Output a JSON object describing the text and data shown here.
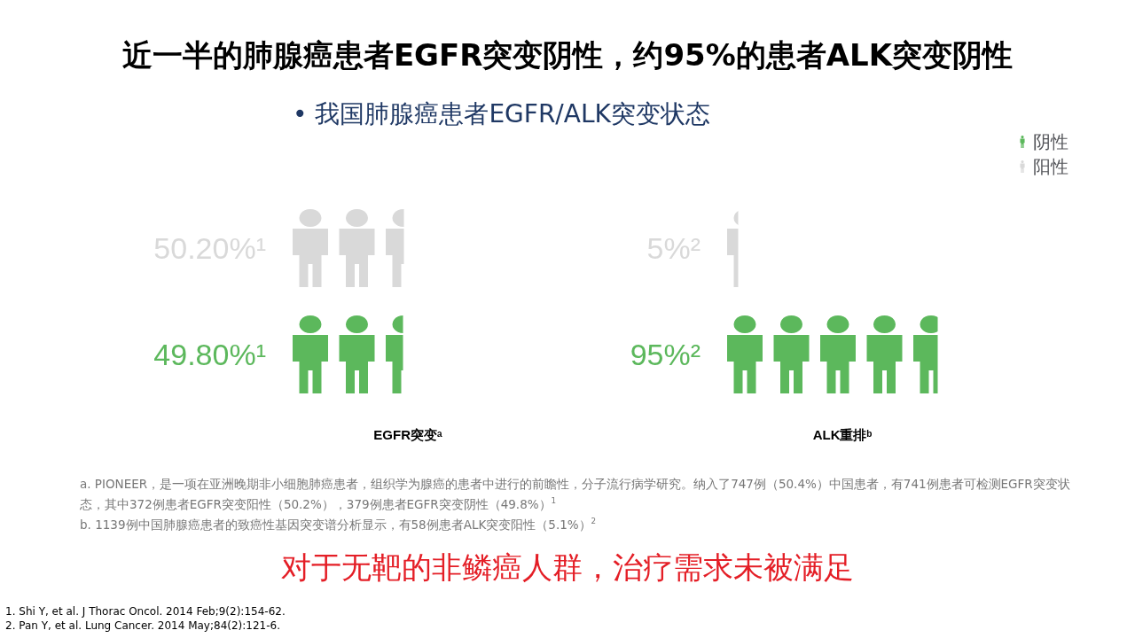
{
  "chart_data": {
    "type": "other",
    "title": "近一半的肺腺癌患者EGFR突变阴性，约95%的患者ALK突变阴性",
    "subtitle": "• 我国肺腺癌患者EGFR/ALK突变状态",
    "categories": [
      "EGFR突变ᵃ",
      "ALK重排ᵇ"
    ],
    "series": [
      {
        "name": "阳性",
        "color": "#d9d9d9",
        "values": [
          50.2,
          5
        ],
        "value_labels": [
          "50.20%¹",
          "5%²"
        ]
      },
      {
        "name": "阴性",
        "color": "#5cb85c",
        "values": [
          49.8,
          95
        ],
        "value_labels": [
          "49.80%¹",
          "95%²"
        ]
      }
    ],
    "legend": "top right",
    "annotations": [
      "a. PIONEER，是一项在亚洲晚期非小细胞肺癌患者，组织学为腺癌的患者中进行的前瞻性，分子流行病学研究。纳入了747例（50.4%）中国患者，有741例患者可检测EGFR突变状态，其中372例患者EGFR突变阳性（50.2%），379例患者EGFR突变阴性（49.8%）$^{1}$",
      "b. 1139例中国肺腺癌患者的致癌性基因突变谱分析显示，有58例患者ALK突变阳性（5.1%）$^{2}$",
      "对于无靶的非鳞癌人群，治疗需求未被满足",
      "1. Shi Y, et al. J Thorac Oncol. 2014 Feb;9(2):154-62.",
      "2. Pan Y, et al. Lung Cancer. 2014 May;84(2):121-6."
    ]
  }
}
